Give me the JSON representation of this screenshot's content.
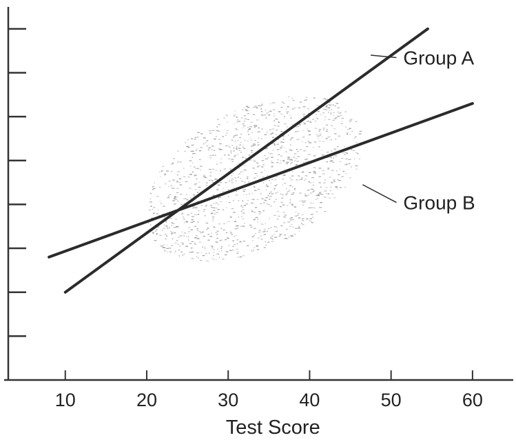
{
  "chart_data": {
    "type": "scatter",
    "title": "",
    "xlabel": "Test Score",
    "ylabel": "",
    "xlim": [
      3,
      65
    ],
    "ylim": [
      0,
      8.5
    ],
    "x_ticks": [
      10,
      20,
      30,
      40,
      50,
      60
    ],
    "y_ticks": [
      1,
      2,
      3,
      4,
      5,
      6,
      7,
      8
    ],
    "y_tick_labels_shown": false,
    "grid": false,
    "scatter_cloud": {
      "description_level": "shaded point cloud",
      "x_range": [
        17,
        52
      ],
      "center": [
        33,
        4.6
      ],
      "color": "#9a9a9a"
    },
    "series": [
      {
        "name": "Group A",
        "x": [
          10,
          54.5
        ],
        "y": [
          2.0,
          8.0
        ]
      },
      {
        "name": "Group B",
        "x": [
          8,
          60
        ],
        "y": [
          2.8,
          6.3
        ]
      }
    ],
    "colors": {
      "line": "#2b2b2b",
      "axis": "#333333",
      "points": "#9a9a9a"
    }
  }
}
